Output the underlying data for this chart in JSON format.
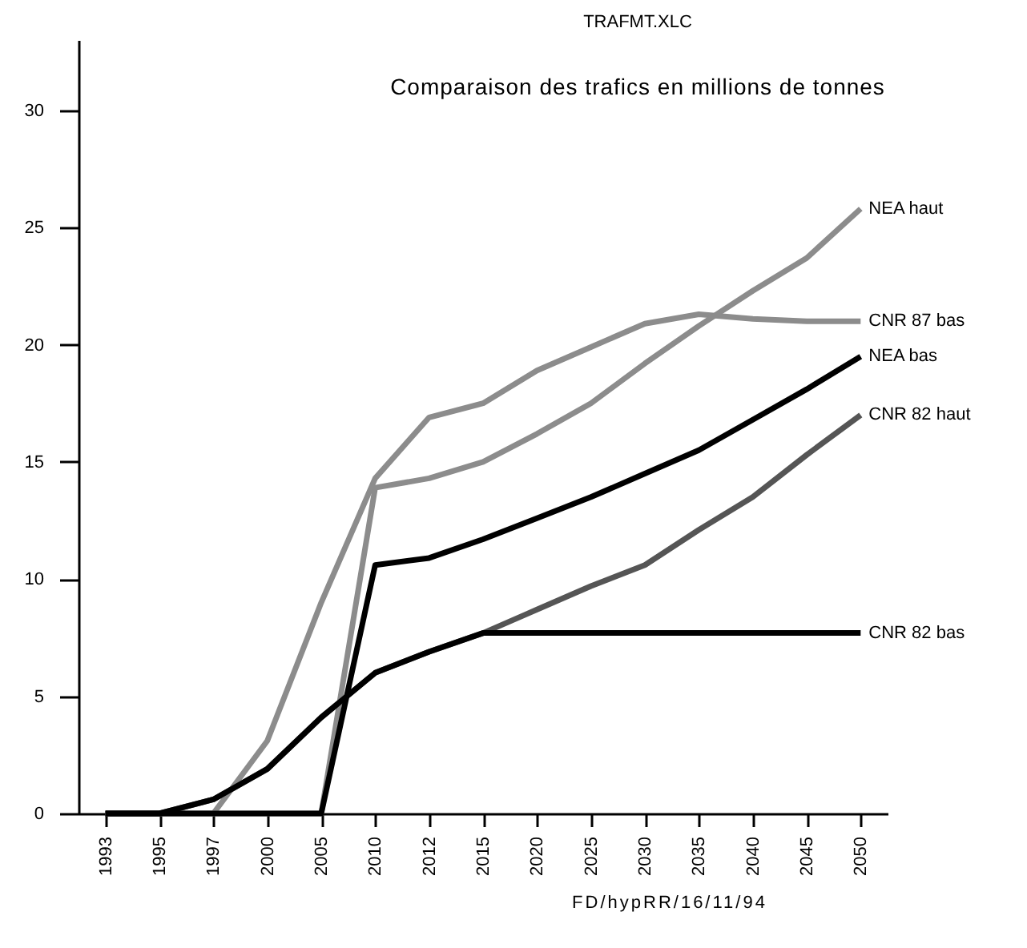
{
  "chart_data": {
    "type": "line",
    "title": "Comparaison des trafics en millions de tonnes",
    "annotations": [
      "TRAFMT.XLC",
      "FD/hypRR/16/11/94"
    ],
    "categories": [
      "1993",
      "1995",
      "1997",
      "2000",
      "2005",
      "2010",
      "2012",
      "2015",
      "2020",
      "2025",
      "2030",
      "2035",
      "2040",
      "2045",
      "2050"
    ],
    "series": [
      {
        "name": "CNR 82 haut",
        "color": "#555555",
        "values": [
          0,
          0,
          0.6,
          1.9,
          4.1,
          6.0,
          6.9,
          7.7,
          8.7,
          9.7,
          10.6,
          12.1,
          13.5,
          15.3,
          17.0
        ]
      },
      {
        "name": "CNR 87 bas",
        "color": "#8c8c8c",
        "values": [
          0,
          0,
          0,
          3.1,
          9.0,
          14.3,
          16.9,
          17.5,
          18.9,
          19.9,
          20.9,
          21.3,
          21.1,
          21.0,
          21.0
        ]
      },
      {
        "name": "NEA haut",
        "color": "#8c8c8c",
        "values": [
          0,
          0,
          0,
          0,
          0,
          13.9,
          14.3,
          15.0,
          16.2,
          17.5,
          19.2,
          20.8,
          22.3,
          23.7,
          25.8
        ]
      },
      {
        "name": "NEA bas",
        "color": "#000000",
        "values": [
          0,
          0,
          0,
          0,
          0,
          10.6,
          10.9,
          11.7,
          12.6,
          13.5,
          14.5,
          15.5,
          16.8,
          18.1,
          19.5
        ]
      },
      {
        "name": "CNR 82 bas",
        "color": "#000000",
        "values": [
          0,
          0,
          0.6,
          1.9,
          4.1,
          6.0,
          6.9,
          7.7,
          7.7,
          7.7,
          7.7,
          7.7,
          7.7,
          7.7,
          7.7
        ]
      }
    ],
    "ylim": [
      0,
      33
    ],
    "yticks": [
      0,
      5,
      10,
      15,
      20,
      25,
      30
    ],
    "grid": false,
    "legend": false,
    "marker": "none",
    "line_style": "solid"
  }
}
